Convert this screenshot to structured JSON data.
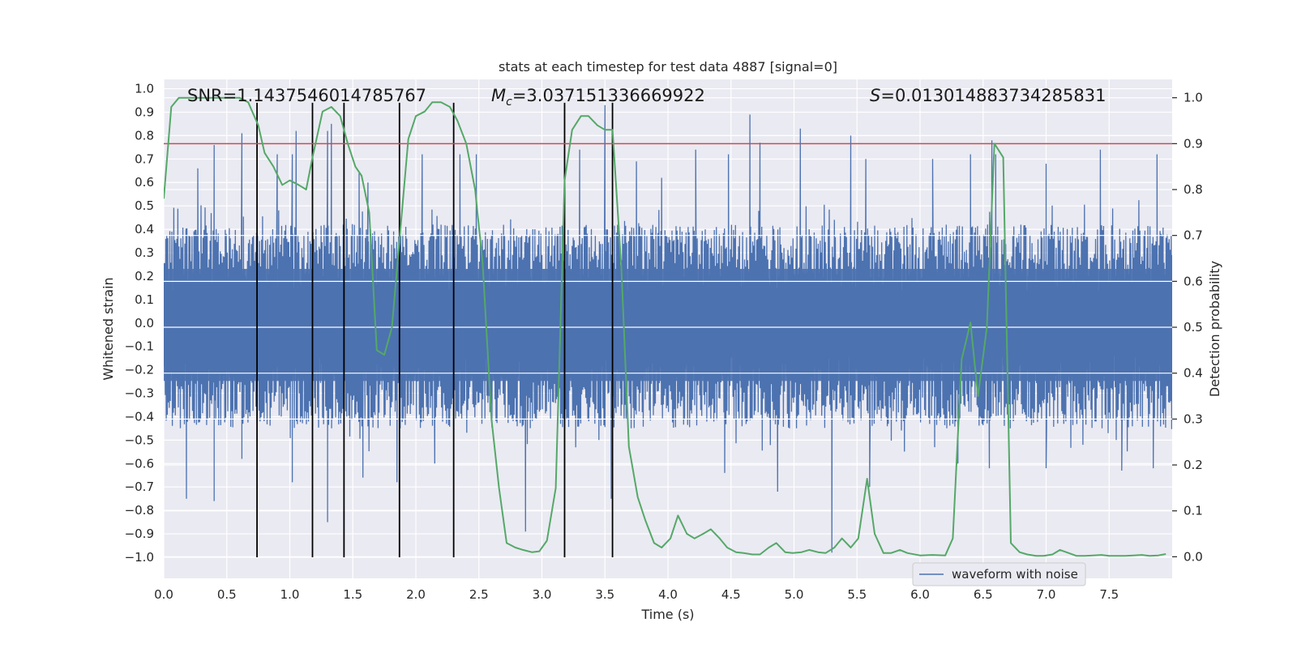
{
  "chart_data": {
    "type": "line",
    "title": "stats at each timestep for test data 4887 [signal=0]",
    "xlabel": "Time (s)",
    "ylabel": "Whitened strain",
    "y2label": "Detection probability",
    "xlim": [
      0.0,
      8.0
    ],
    "ylim": [
      -1.09,
      1.04
    ],
    "y2lim": [
      -0.047,
      1.04
    ],
    "x_ticks": [
      0.0,
      0.5,
      1.0,
      1.5,
      2.0,
      2.5,
      3.0,
      3.5,
      4.0,
      4.5,
      5.0,
      5.5,
      6.0,
      6.5,
      7.0,
      7.5
    ],
    "x_tick_labels": [
      "0.0",
      "0.5",
      "1.0",
      "1.5",
      "2.0",
      "2.5",
      "3.0",
      "3.5",
      "4.0",
      "4.5",
      "5.0",
      "5.5",
      "6.0",
      "6.5",
      "7.0",
      "7.5"
    ],
    "y_ticks": [
      1.0,
      0.9,
      0.8,
      0.7,
      0.6,
      0.5,
      0.4,
      0.3,
      0.2,
      0.1,
      0.0,
      -0.1,
      -0.2,
      -0.3,
      -0.4,
      -0.5,
      -0.6,
      -0.7,
      -0.8,
      -0.9,
      -1.0
    ],
    "y_tick_labels": [
      "1.0",
      "0.9",
      "0.8",
      "0.7",
      "0.6",
      "0.5",
      "0.4",
      "0.3",
      "0.2",
      "0.1",
      "0.0",
      "−0.1",
      "−0.2",
      "−0.3",
      "−0.4",
      "−0.5",
      "−0.6",
      "−0.7",
      "−0.8",
      "−0.9",
      "−1.0"
    ],
    "y2_ticks": [
      1.0,
      0.9,
      0.8,
      0.7,
      0.6,
      0.5,
      0.4,
      0.3,
      0.2,
      0.1,
      0.0
    ],
    "y2_tick_labels": [
      "1.0",
      "0.9",
      "0.8",
      "0.7",
      "0.6",
      "0.5",
      "0.4",
      "0.3",
      "0.2",
      "0.1",
      "0.0"
    ],
    "annotations": {
      "snr": "SNR=1.1437546014785767",
      "mc_symbol": "M",
      "mc_sub": "c",
      "mc_value": "=3.037151336669922",
      "s_symbol": "S",
      "s_value": "=0.013014883734285831"
    },
    "legend": {
      "label": "waveform with noise",
      "position": "lower-right"
    },
    "threshold": {
      "y2": 0.9,
      "color": "#c44e52"
    },
    "vertical_markers": [
      0.74,
      1.18,
      1.43,
      1.87,
      2.3,
      3.18,
      3.56
    ],
    "waveform": {
      "name": "waveform with noise",
      "color": "#4c72b0",
      "sample_step": 0.004,
      "envelope_upper": 0.42,
      "envelope_lower": -0.45,
      "peaks": [
        [
          0.27,
          0.66
        ],
        [
          0.4,
          0.76
        ],
        [
          0.62,
          0.81
        ],
        [
          0.9,
          0.72
        ],
        [
          1.02,
          0.72
        ],
        [
          1.05,
          0.82
        ],
        [
          1.3,
          0.82
        ],
        [
          1.33,
          0.85
        ],
        [
          1.55,
          0.64
        ],
        [
          1.62,
          0.6
        ],
        [
          2.05,
          0.72
        ],
        [
          2.35,
          0.72
        ],
        [
          2.48,
          0.72
        ],
        [
          3.3,
          0.74
        ],
        [
          3.5,
          0.93
        ],
        [
          3.75,
          0.69
        ],
        [
          3.95,
          0.62
        ],
        [
          4.22,
          0.74
        ],
        [
          4.48,
          0.72
        ],
        [
          4.65,
          0.89
        ],
        [
          4.73,
          0.77
        ],
        [
          5.05,
          0.83
        ],
        [
          5.45,
          0.8
        ],
        [
          5.57,
          0.7
        ],
        [
          6.1,
          0.7
        ],
        [
          6.4,
          0.72
        ],
        [
          6.57,
          0.78
        ],
        [
          6.6,
          0.72
        ],
        [
          7.0,
          0.68
        ],
        [
          7.43,
          0.74
        ],
        [
          7.88,
          0.72
        ]
      ],
      "troughs": [
        [
          0.18,
          -0.75
        ],
        [
          0.4,
          -0.76
        ],
        [
          0.62,
          -0.58
        ],
        [
          1.02,
          -0.68
        ],
        [
          1.3,
          -0.85
        ],
        [
          1.58,
          -0.66
        ],
        [
          1.85,
          -0.68
        ],
        [
          2.15,
          -0.6
        ],
        [
          2.87,
          -0.89
        ],
        [
          3.55,
          -0.75
        ],
        [
          4.45,
          -0.64
        ],
        [
          4.87,
          -0.72
        ],
        [
          5.3,
          -0.98
        ],
        [
          5.6,
          -0.7
        ],
        [
          6.3,
          -0.6
        ],
        [
          6.55,
          -0.62
        ],
        [
          7.0,
          -0.62
        ],
        [
          7.6,
          -0.63
        ],
        [
          7.85,
          -0.62
        ]
      ]
    },
    "series": [
      {
        "name": "detection probability",
        "color": "#55a868",
        "axis": "right",
        "x": [
          0.0,
          0.06,
          0.12,
          0.2,
          0.3,
          0.4,
          0.5,
          0.6,
          0.67,
          0.75,
          0.8,
          0.87,
          0.94,
          1.0,
          1.07,
          1.13,
          1.18,
          1.26,
          1.33,
          1.4,
          1.46,
          1.52,
          1.57,
          1.63,
          1.69,
          1.75,
          1.81,
          1.87,
          1.94,
          2.0,
          2.07,
          2.13,
          2.2,
          2.27,
          2.33,
          2.4,
          2.47,
          2.53,
          2.6,
          2.66,
          2.72,
          2.79,
          2.85,
          2.92,
          2.98,
          3.04,
          3.11,
          3.18,
          3.24,
          3.31,
          3.37,
          3.44,
          3.5,
          3.56,
          3.63,
          3.69,
          3.76,
          3.82,
          3.89,
          3.95,
          4.02,
          4.08,
          4.15,
          4.21,
          4.28,
          4.34,
          4.41,
          4.47,
          4.54,
          4.6,
          4.67,
          4.73,
          4.8,
          4.86,
          4.93,
          4.99,
          5.06,
          5.12,
          5.19,
          5.25,
          5.32,
          5.38,
          5.45,
          5.51,
          5.58,
          5.64,
          5.71,
          5.77,
          5.84,
          5.9,
          6.0,
          6.1,
          6.2,
          6.26,
          6.33,
          6.4,
          6.46,
          6.53,
          6.59,
          6.66,
          6.72,
          6.79,
          6.85,
          6.92,
          6.98,
          7.05,
          7.11,
          7.18,
          7.24,
          7.31,
          7.37,
          7.44,
          7.5,
          7.56,
          7.63,
          7.69,
          7.76,
          7.82,
          7.89,
          7.95
        ],
        "y": [
          0.78,
          0.98,
          1.0,
          1.0,
          1.0,
          1.0,
          1.0,
          1.0,
          0.99,
          0.94,
          0.88,
          0.85,
          0.81,
          0.82,
          0.81,
          0.8,
          0.87,
          0.97,
          0.98,
          0.96,
          0.9,
          0.85,
          0.83,
          0.75,
          0.45,
          0.44,
          0.5,
          0.69,
          0.91,
          0.96,
          0.97,
          0.99,
          0.99,
          0.98,
          0.95,
          0.9,
          0.8,
          0.64,
          0.3,
          0.15,
          0.03,
          0.02,
          0.015,
          0.01,
          0.012,
          0.035,
          0.15,
          0.82,
          0.93,
          0.96,
          0.96,
          0.94,
          0.93,
          0.93,
          0.63,
          0.24,
          0.13,
          0.08,
          0.03,
          0.02,
          0.04,
          0.09,
          0.05,
          0.04,
          0.05,
          0.06,
          0.04,
          0.02,
          0.01,
          0.008,
          0.005,
          0.005,
          0.02,
          0.03,
          0.01,
          0.008,
          0.01,
          0.015,
          0.01,
          0.008,
          0.02,
          0.04,
          0.02,
          0.04,
          0.17,
          0.05,
          0.008,
          0.008,
          0.015,
          0.008,
          0.003,
          0.004,
          0.003,
          0.04,
          0.43,
          0.51,
          0.35,
          0.5,
          0.9,
          0.87,
          0.03,
          0.01,
          0.005,
          0.002,
          0.002,
          0.005,
          0.015,
          0.008,
          0.002,
          0.002,
          0.003,
          0.004,
          0.002,
          0.002,
          0.002,
          0.003,
          0.004,
          0.002,
          0.003,
          0.006
        ]
      }
    ]
  }
}
